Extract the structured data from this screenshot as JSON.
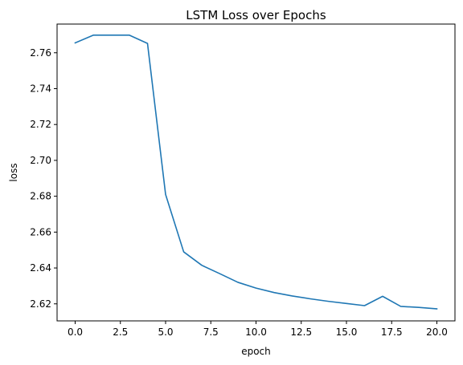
{
  "chart_data": {
    "type": "line",
    "title": "LSTM Loss over Epochs",
    "xlabel": "epoch",
    "ylabel": "loss",
    "xlim": [
      -1,
      21
    ],
    "ylim": [
      2.6105,
      2.776
    ],
    "xticks": [
      0.0,
      2.5,
      5.0,
      7.5,
      10.0,
      12.5,
      15.0,
      17.5,
      20.0
    ],
    "xtick_labels": [
      "0.0",
      "2.5",
      "5.0",
      "7.5",
      "10.0",
      "12.5",
      "15.0",
      "17.5",
      "20.0"
    ],
    "yticks": [
      2.62,
      2.64,
      2.66,
      2.68,
      2.7,
      2.72,
      2.74,
      2.76
    ],
    "ytick_labels": [
      "2.62",
      "2.64",
      "2.66",
      "2.68",
      "2.70",
      "2.72",
      "2.74",
      "2.76"
    ],
    "grid": false,
    "color": "#1f77b4",
    "series": [
      {
        "x": [
          0,
          1,
          2,
          3,
          4,
          5,
          6,
          7,
          8,
          9,
          10,
          11,
          12,
          13,
          14,
          15,
          16,
          17,
          18,
          19,
          20
        ],
        "y": [
          2.7655,
          2.7698,
          2.7698,
          2.7698,
          2.7652,
          2.681,
          2.649,
          2.6415,
          2.6368,
          2.632,
          2.6288,
          2.6263,
          2.6244,
          2.6228,
          2.6214,
          2.6202,
          2.619,
          2.6242,
          2.6186,
          2.618,
          2.6172
        ]
      }
    ]
  }
}
